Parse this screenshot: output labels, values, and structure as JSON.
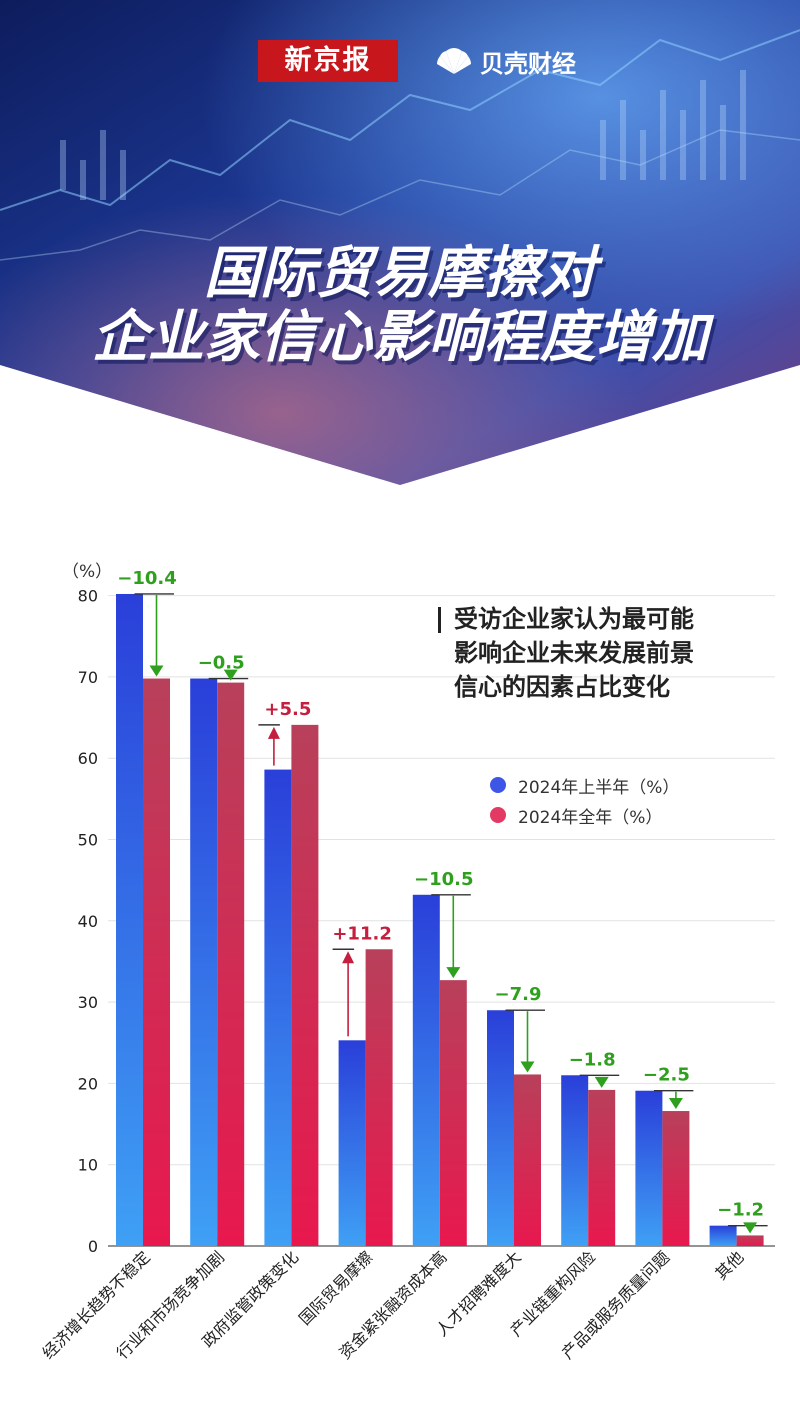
{
  "header": {
    "brand_left": "新京报",
    "brand_right": "贝壳财经",
    "title_line1": "国际贸易摩擦对",
    "title_line2": "企业家信心影响程度增加"
  },
  "note": {
    "line1": "受访企业家认为最可能",
    "line2": "影响企业未来发展前景",
    "line3": "信心的因素占比变化"
  },
  "colors": {
    "series1": "#3e56e6",
    "series2": "#e23a62",
    "decrease": "#2ea01e",
    "increase": "#c41f3e"
  },
  "chart_data": {
    "type": "bar",
    "ylabel": "（%）",
    "ylim": [
      0,
      80
    ],
    "yticks": [
      "0",
      "10",
      "20",
      "30",
      "40",
      "50",
      "60",
      "70",
      "80"
    ],
    "grid": true,
    "legend_position": "top-right",
    "categories": [
      "经济增长趋势不稳定",
      "行业和市场竞争加剧",
      "政府监管政策变化",
      "国际贸易摩擦",
      "资金紧张融资成本高",
      "人才招聘难度大",
      "产业链重构风险",
      "产品或服务质量问题",
      "其他"
    ],
    "series": [
      {
        "name": "2024年上半年（%）",
        "values": [
          80.2,
          69.8,
          58.6,
          25.3,
          43.2,
          29.0,
          21.0,
          19.1,
          2.5
        ]
      },
      {
        "name": "2024年全年（%）",
        "values": [
          69.8,
          69.3,
          64.1,
          36.5,
          32.7,
          21.1,
          19.2,
          16.6,
          1.3
        ]
      }
    ],
    "changes": [
      "−10.4",
      "−0.5",
      "+5.5",
      "+11.2",
      "−10.5",
      "−7.9",
      "−1.8",
      "−2.5",
      "−1.2"
    ]
  }
}
